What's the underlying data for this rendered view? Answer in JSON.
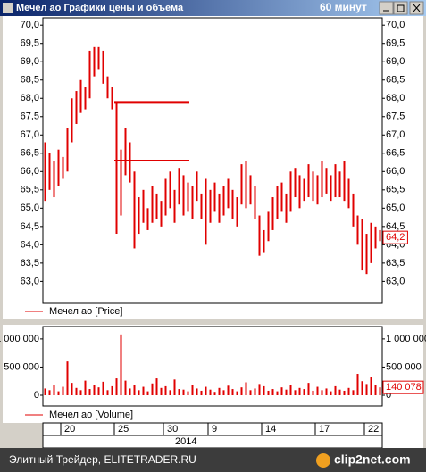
{
  "window": {
    "title": "Мечел ао Графики цены и объема",
    "interval": "60 минут"
  },
  "footer": {
    "site": "Элитный Трейдер, ELITETRADER.RU",
    "logo": "clip2net.com"
  },
  "chart_data": [
    {
      "type": "range-bar",
      "categories": [
        null,
        null,
        null,
        null,
        "20",
        null,
        null,
        null,
        null,
        null,
        null,
        null,
        null,
        null,
        null,
        null,
        "25",
        null,
        null,
        null,
        null,
        null,
        null,
        null,
        null,
        null,
        null,
        "30",
        null,
        null,
        null,
        null,
        null,
        null,
        null,
        null,
        null,
        "9",
        null,
        null,
        null,
        null,
        null,
        null,
        null,
        null,
        null,
        null,
        null,
        "14",
        null,
        null,
        null,
        null,
        null,
        null,
        null,
        null,
        null,
        null,
        null,
        "17",
        null,
        null,
        null,
        null,
        null,
        null,
        null,
        null,
        null,
        null,
        "22",
        null,
        null,
        null
      ],
      "year": "2014",
      "series": [
        {
          "name": "Мечел ао [Price]",
          "color": "#e00000",
          "high": [
            66.8,
            66.5,
            66.3,
            66.6,
            66.4,
            67.2,
            68.0,
            68.2,
            68.5,
            68.3,
            69.3,
            69.4,
            69.4,
            69.3,
            68.6,
            68.3,
            67.9,
            66.6,
            67.2,
            66.8,
            66.0,
            65.3,
            65.5,
            65.0,
            65.6,
            65.4,
            65.2,
            65.8,
            66.0,
            65.5,
            66.1,
            65.9,
            65.7,
            65.6,
            66.0,
            65.4,
            65.8,
            65.5,
            65.7,
            65.4,
            65.6,
            65.8,
            65.5,
            65.3,
            66.2,
            66.3,
            65.9,
            65.6,
            64.8,
            64.4,
            64.9,
            65.3,
            65.6,
            65.7,
            65.4,
            66.0,
            66.1,
            65.9,
            65.8,
            66.2,
            66.0,
            65.9,
            66.3,
            66.1,
            65.9,
            66.2,
            66.0,
            66.3,
            65.8,
            65.4,
            64.8,
            64.7,
            64.3,
            64.6,
            64.5,
            64.4
          ],
          "low": [
            65.2,
            65.5,
            65.3,
            65.6,
            65.8,
            66.0,
            66.8,
            67.3,
            67.6,
            67.7,
            68.0,
            68.6,
            68.8,
            68.4,
            68.0,
            67.7,
            64.3,
            64.8,
            65.9,
            65.7,
            63.9,
            64.3,
            64.6,
            64.4,
            64.6,
            64.7,
            64.5,
            64.8,
            65.0,
            64.6,
            65.1,
            64.8,
            64.9,
            64.7,
            65.2,
            64.7,
            64.0,
            64.6,
            64.9,
            64.6,
            64.8,
            65.0,
            64.7,
            64.5,
            65.1,
            65.0,
            65.1,
            64.7,
            63.7,
            63.8,
            64.1,
            64.4,
            64.7,
            64.9,
            64.6,
            64.9,
            65.3,
            65.0,
            65.2,
            65.3,
            65.2,
            65.1,
            65.3,
            65.4,
            65.2,
            65.3,
            65.3,
            65.2,
            65.0,
            64.5,
            64.0,
            63.3,
            63.2,
            63.5,
            63.9,
            64.1
          ]
        }
      ],
      "last_value": {
        "value": 64.2,
        "label": "64,2"
      },
      "hlines": [
        67.9,
        66.3
      ],
      "ylim": [
        62.4,
        70.2
      ],
      "yticks": [
        {
          "value": 63,
          "label": "63,0"
        },
        {
          "value": 63.5,
          "label": "63,5"
        },
        {
          "value": 64,
          "label": "64,0"
        },
        {
          "value": 64.5,
          "label": "64,5"
        },
        {
          "value": 65,
          "label": "65,0"
        },
        {
          "value": 65.5,
          "label": "65,5"
        },
        {
          "value": 66,
          "label": "66,0"
        },
        {
          "value": 66.5,
          "label": "66,5"
        },
        {
          "value": 67,
          "label": "67,0"
        },
        {
          "value": 67.5,
          "label": "67,5"
        },
        {
          "value": 68,
          "label": "68,0"
        },
        {
          "value": 68.5,
          "label": "68,5"
        },
        {
          "value": 69,
          "label": "69,0"
        },
        {
          "value": 69.5,
          "label": "69,5"
        },
        {
          "value": 70,
          "label": "70,0"
        }
      ],
      "grid": false
    },
    {
      "type": "bar",
      "series": [
        {
          "name": "Мечел ао [Volume]",
          "color": "#e00000",
          "values": [
            120000,
            90000,
            180000,
            70000,
            150000,
            600000,
            220000,
            130000,
            90000,
            260000,
            110000,
            180000,
            140000,
            240000,
            90000,
            160000,
            300000,
            1080000,
            260000,
            120000,
            180000,
            90000,
            150000,
            70000,
            210000,
            300000,
            130000,
            160000,
            90000,
            280000,
            110000,
            100000,
            70000,
            190000,
            120000,
            80000,
            150000,
            100000,
            60000,
            130000,
            90000,
            170000,
            110000,
            70000,
            140000,
            230000,
            90000,
            120000,
            200000,
            160000,
            80000,
            110000,
            70000,
            140000,
            100000,
            180000,
            90000,
            130000,
            110000,
            220000,
            80000,
            150000,
            90000,
            120000,
            70000,
            160000,
            100000,
            80000,
            130000,
            90000,
            380000,
            250000,
            200000,
            330000,
            180000,
            140078
          ]
        }
      ],
      "last_value": {
        "value": 140078,
        "label": "140 078"
      },
      "ylim": [
        -190000,
        1220000
      ],
      "yticks": [
        0,
        {
          "value": 500000,
          "label": "500 000"
        },
        {
          "value": 1000000,
          "label": "1 000 000"
        }
      ],
      "grid": false
    }
  ]
}
